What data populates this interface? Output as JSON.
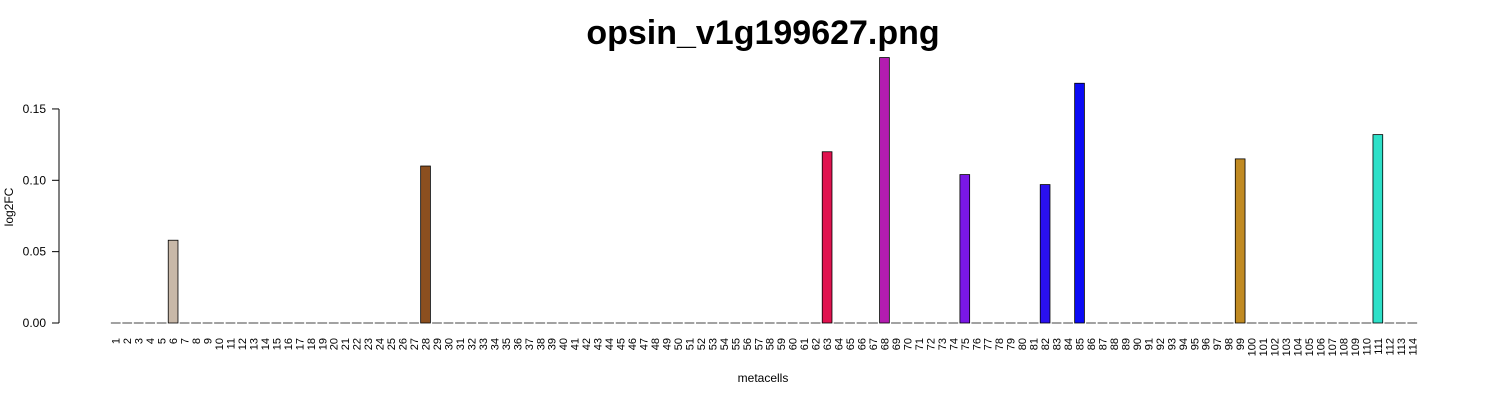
{
  "chart_data": {
    "type": "bar",
    "title": "opsin_v1g199627.png",
    "xlabel": "metacells",
    "ylabel": "log2FC",
    "ylim": [
      0,
      0.185
    ],
    "yticks": [
      "0.00",
      "0.05",
      "0.10",
      "0.15"
    ],
    "ytick_values": [
      0,
      0.05,
      0.1,
      0.15
    ],
    "grid": false,
    "legend": "none",
    "categories": [
      "1",
      "2",
      "3",
      "4",
      "5",
      "6",
      "7",
      "8",
      "9",
      "10",
      "11",
      "12",
      "13",
      "14",
      "15",
      "16",
      "17",
      "18",
      "19",
      "20",
      "21",
      "22",
      "23",
      "24",
      "25",
      "26",
      "27",
      "28",
      "29",
      "30",
      "31",
      "32",
      "33",
      "34",
      "35",
      "36",
      "37",
      "38",
      "39",
      "40",
      "41",
      "42",
      "43",
      "44",
      "45",
      "46",
      "47",
      "48",
      "49",
      "50",
      "51",
      "52",
      "53",
      "54",
      "55",
      "56",
      "57",
      "58",
      "59",
      "60",
      "61",
      "62",
      "63",
      "64",
      "65",
      "66",
      "67",
      "68",
      "69",
      "70",
      "71",
      "72",
      "73",
      "74",
      "75",
      "76",
      "77",
      "78",
      "79",
      "80",
      "81",
      "82",
      "83",
      "84",
      "85",
      "86",
      "87",
      "88",
      "89",
      "90",
      "91",
      "92",
      "93",
      "94",
      "95",
      "96",
      "97",
      "98",
      "99",
      "100",
      "101",
      "102",
      "103",
      "104",
      "105",
      "106",
      "107",
      "108",
      "109",
      "110",
      "111",
      "112",
      "113",
      "114"
    ],
    "values": [
      0,
      0,
      0,
      0,
      0,
      0.058,
      0,
      0,
      0,
      0,
      0,
      0,
      0,
      0,
      0,
      0,
      0,
      0,
      0,
      0,
      0,
      0,
      0,
      0,
      0,
      0,
      0,
      0.11,
      0,
      0,
      0,
      0,
      0,
      0,
      0,
      0,
      0,
      0,
      0,
      0,
      0,
      0,
      0,
      0,
      0,
      0,
      0,
      0,
      0,
      0,
      0,
      0,
      0,
      0,
      0,
      0,
      0,
      0,
      0,
      0,
      0,
      0,
      0.12,
      0,
      0,
      0,
      0,
      0.186,
      0,
      0,
      0,
      0,
      0,
      0,
      0.104,
      0,
      0,
      0,
      0,
      0,
      0,
      0.097,
      0,
      0,
      0.168,
      0,
      0,
      0,
      0,
      0,
      0,
      0,
      0,
      0,
      0,
      0,
      0,
      0,
      0.115,
      0,
      0,
      0,
      0,
      0,
      0,
      0,
      0,
      0,
      0,
      0,
      0.132,
      0,
      0,
      0
    ],
    "bar_colors": {
      "6": "#c8b8a8",
      "28": "#8b4f1f",
      "63": "#e0124f",
      "68": "#b31cb0",
      "75": "#7a17e6",
      "82": "#2a10f0",
      "85": "#0b0bf5",
      "99": "#c08a22",
      "111": "#2ee0c8"
    },
    "default_bar_color": "#dddddd"
  }
}
